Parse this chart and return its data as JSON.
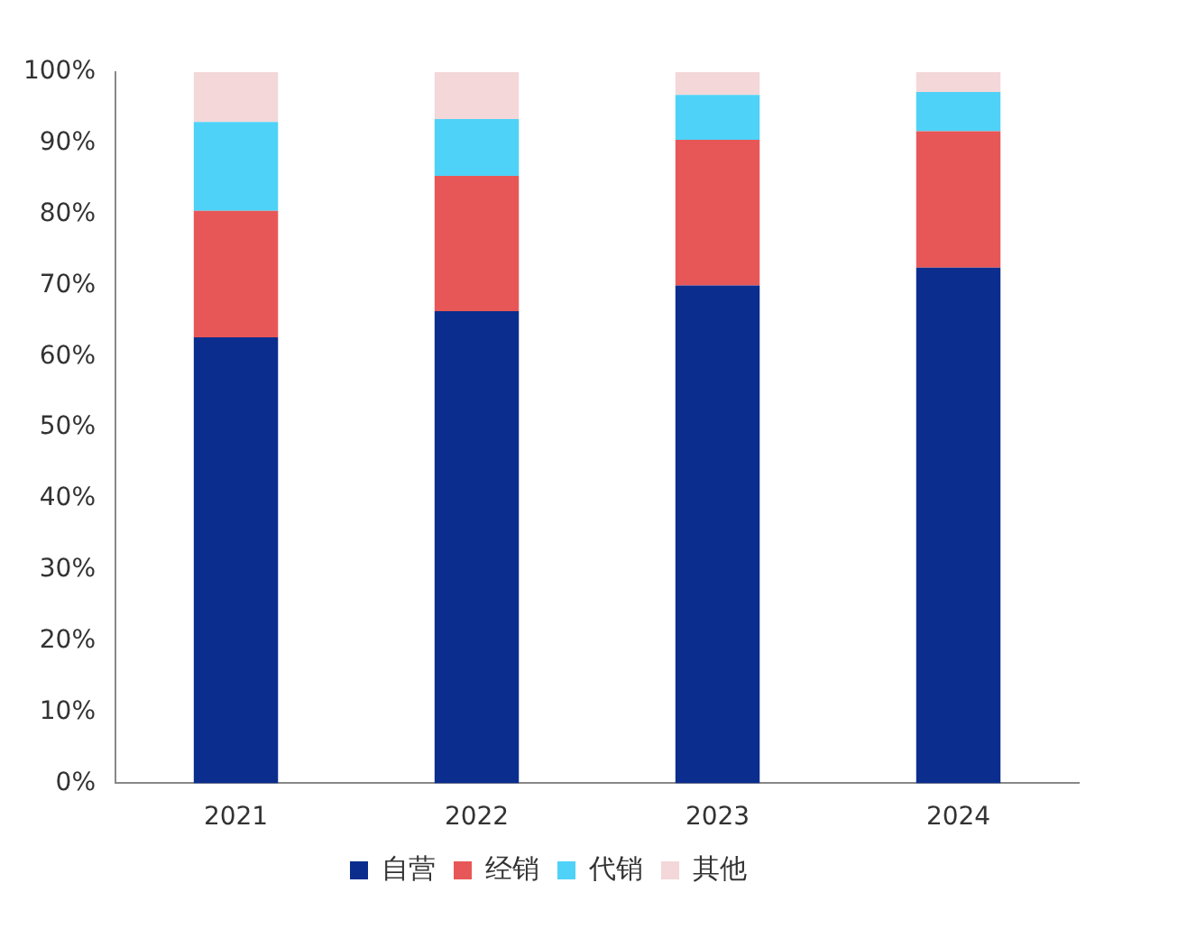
{
  "chart_data": {
    "type": "bar",
    "stacked": true,
    "categories": [
      "2021",
      "2022",
      "2023",
      "2024"
    ],
    "series": [
      {
        "name": "自营",
        "color": "#0b2d8e",
        "values": [
          62.7,
          66.4,
          70.0,
          72.5
        ]
      },
      {
        "name": "经销",
        "color": "#e85757",
        "values": [
          17.8,
          19.0,
          20.5,
          19.2
        ]
      },
      {
        "name": "代销",
        "color": "#4fd2f7",
        "values": [
          12.5,
          8.0,
          6.3,
          5.5
        ]
      },
      {
        "name": "其他",
        "color": "#f3d7d9",
        "values": [
          7.0,
          6.6,
          3.2,
          2.8
        ]
      }
    ],
    "ylim": [
      0,
      100
    ],
    "yticks": [
      {
        "value": 0,
        "label": "0%"
      },
      {
        "value": 10,
        "label": "10%"
      },
      {
        "value": 20,
        "label": "20%"
      },
      {
        "value": 30,
        "label": "30%"
      },
      {
        "value": 40,
        "label": "40%"
      },
      {
        "value": 50,
        "label": "50%"
      },
      {
        "value": 60,
        "label": "60%"
      },
      {
        "value": 70,
        "label": "70%"
      },
      {
        "value": 80,
        "label": "80%"
      },
      {
        "value": 90,
        "label": "90%"
      },
      {
        "value": 100,
        "label": "100%"
      }
    ],
    "grid": false,
    "legend": "bottom"
  }
}
